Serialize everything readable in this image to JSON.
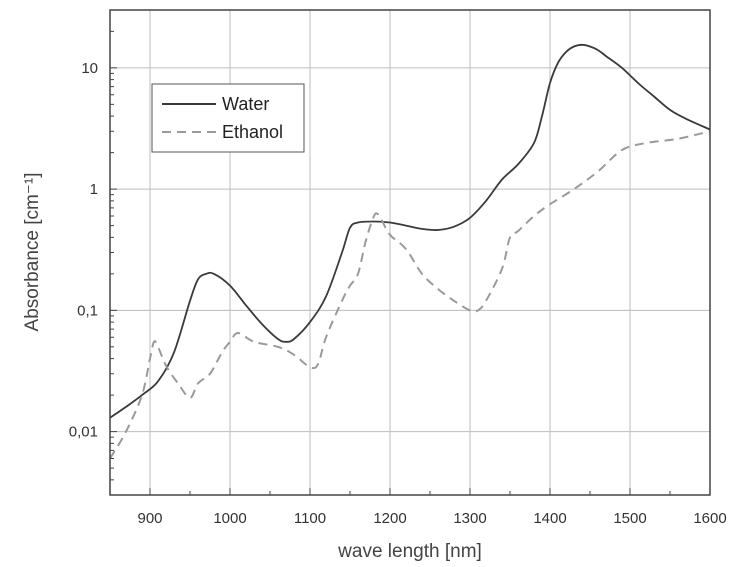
{
  "chart_data": {
    "type": "line",
    "xlabel": "wave length [nm]",
    "ylabel": "Absorbance [cm⁻¹]",
    "xlim": [
      850,
      1600
    ],
    "ylim": [
      0.003,
      30
    ],
    "yscale": "log",
    "grid": true,
    "legend": {
      "position": "top-left"
    },
    "x_ticks": [
      {
        "value": 900,
        "label": "900"
      },
      {
        "value": 1000,
        "label": "1000"
      },
      {
        "value": 1100,
        "label": "1100"
      },
      {
        "value": 1200,
        "label": "1200"
      },
      {
        "value": 1300,
        "label": "1300"
      },
      {
        "value": 1400,
        "label": "1400"
      },
      {
        "value": 1500,
        "label": "1500"
      },
      {
        "value": 1600,
        "label": "1600"
      }
    ],
    "y_ticks": [
      {
        "value": 0.01,
        "label": "0,01"
      },
      {
        "value": 0.1,
        "label": "0,1"
      },
      {
        "value": 1,
        "label": "1"
      },
      {
        "value": 10,
        "label": "10"
      }
    ],
    "series": [
      {
        "name": "Water",
        "style": "solid",
        "color": "#3a3a3a",
        "x": [
          850,
          870,
          890,
          910,
          930,
          950,
          960,
          970,
          980,
          1000,
          1020,
          1040,
          1060,
          1070,
          1080,
          1100,
          1120,
          1140,
          1150,
          1160,
          1180,
          1200,
          1220,
          1240,
          1260,
          1280,
          1300,
          1320,
          1340,
          1360,
          1380,
          1390,
          1400,
          1410,
          1420,
          1430,
          1440,
          1450,
          1460,
          1470,
          1490,
          1510,
          1530,
          1550,
          1570,
          1600
        ],
        "y": [
          0.013,
          0.016,
          0.02,
          0.026,
          0.045,
          0.12,
          0.18,
          0.2,
          0.2,
          0.16,
          0.11,
          0.077,
          0.058,
          0.055,
          0.058,
          0.08,
          0.13,
          0.3,
          0.48,
          0.53,
          0.54,
          0.53,
          0.5,
          0.47,
          0.46,
          0.49,
          0.58,
          0.8,
          1.2,
          1.6,
          2.4,
          4,
          7.5,
          11,
          13.5,
          15,
          15.5,
          15,
          14,
          12.5,
          10,
          7.5,
          5.8,
          4.5,
          3.8,
          3.1
        ]
      },
      {
        "name": "Ethanol",
        "style": "dashed",
        "color": "#9a9a9a",
        "x": [
          850,
          870,
          890,
          900,
          905,
          910,
          920,
          935,
          950,
          960,
          975,
          990,
          1000,
          1010,
          1030,
          1060,
          1080,
          1100,
          1110,
          1120,
          1140,
          1150,
          1160,
          1170,
          1180,
          1185,
          1190,
          1200,
          1220,
          1240,
          1260,
          1280,
          1300,
          1310,
          1320,
          1340,
          1350,
          1360,
          1380,
          1400,
          1430,
          1460,
          1490,
          1520,
          1560,
          1600
        ],
        "y": [
          0.006,
          0.01,
          0.02,
          0.04,
          0.055,
          0.05,
          0.035,
          0.025,
          0.019,
          0.025,
          0.03,
          0.045,
          0.055,
          0.065,
          0.055,
          0.05,
          0.043,
          0.034,
          0.036,
          0.06,
          0.12,
          0.16,
          0.2,
          0.38,
          0.6,
          0.62,
          0.55,
          0.42,
          0.32,
          0.2,
          0.15,
          0.12,
          0.1,
          0.1,
          0.12,
          0.22,
          0.4,
          0.45,
          0.6,
          0.75,
          1.0,
          1.4,
          2.1,
          2.4,
          2.6,
          3.0
        ]
      }
    ]
  }
}
